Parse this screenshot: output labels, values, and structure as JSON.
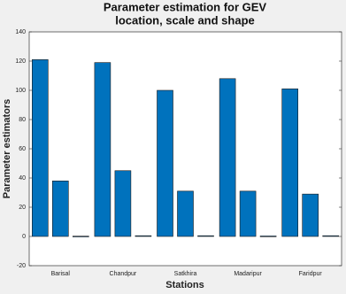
{
  "chart_data": {
    "type": "bar",
    "title": [
      "Parameter estimation for GEV",
      "location, scale and shape"
    ],
    "x_label": "Stations",
    "y_label": "Parameter estimators",
    "categories": [
      "Barisal",
      "Chandpur",
      "Satkhira",
      "Madaripur",
      "Faridpur"
    ],
    "series": [
      {
        "color": "#0072bd",
        "values": [
          121,
          119,
          100,
          108,
          101
        ]
      },
      {
        "color": "#0072bd",
        "values": [
          38,
          45,
          31,
          31,
          29
        ]
      },
      {
        "color": "#0072bd",
        "values": [
          0.2,
          0.5,
          0.5,
          0.3,
          0.5
        ]
      }
    ],
    "ylim": [
      -20,
      140
    ],
    "yticks": [
      -20,
      0,
      20,
      40,
      60,
      80,
      100,
      120,
      140
    ]
  }
}
